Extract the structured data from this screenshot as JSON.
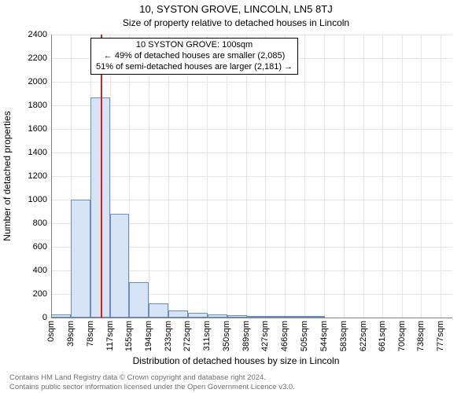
{
  "title_main": "10, SYSTON GROVE, LINCOLN, LN5 8TJ",
  "title_sub": "Size of property relative to detached houses in Lincoln",
  "ylabel": "Number of detached properties",
  "xlabel": "Distribution of detached houses by size in Lincoln",
  "chart": {
    "type": "histogram",
    "plot_bg": "#ffffff",
    "grid_color": "#e5e5e5",
    "axis_color": "#808080",
    "bar_fill": "#d6e4f5",
    "bar_border": "#6a8fbf",
    "marker_color": "#d62020",
    "xlim_min": 0,
    "xlim_max": 800,
    "ylim_min": 0,
    "ylim_max": 2400,
    "ytick_step": 200,
    "bin_width": 39,
    "xtick_unit": "sqm",
    "xticks": [
      0,
      39,
      78,
      117,
      155,
      194,
      233,
      272,
      311,
      350,
      389,
      427,
      466,
      505,
      544,
      583,
      622,
      661,
      700,
      738,
      777
    ],
    "bars": [
      {
        "x": 0,
        "count": 30
      },
      {
        "x": 39,
        "count": 1000
      },
      {
        "x": 78,
        "count": 1870
      },
      {
        "x": 117,
        "count": 880
      },
      {
        "x": 156,
        "count": 300
      },
      {
        "x": 195,
        "count": 120
      },
      {
        "x": 234,
        "count": 60
      },
      {
        "x": 273,
        "count": 40
      },
      {
        "x": 312,
        "count": 30
      },
      {
        "x": 351,
        "count": 20
      },
      {
        "x": 390,
        "count": 12
      },
      {
        "x": 429,
        "count": 8
      },
      {
        "x": 468,
        "count": 6
      },
      {
        "x": 507,
        "count": 4
      },
      {
        "x": 546,
        "count": 3
      },
      {
        "x": 585,
        "count": 2
      },
      {
        "x": 624,
        "count": 2
      },
      {
        "x": 663,
        "count": 1
      },
      {
        "x": 702,
        "count": 1
      },
      {
        "x": 741,
        "count": 1
      }
    ],
    "marker_x": 100
  },
  "annotation": {
    "lines": [
      "10 SYSTON GROVE: 100sqm",
      "← 49% of detached houses are smaller (2,085)",
      "51% of semi-detached houses are larger (2,181) →"
    ],
    "border_color": "#000000",
    "bg": "#ffffff",
    "fontsize": 11
  },
  "footer": {
    "line1": "Contains HM Land Registry data © Crown copyright and database right 2024.",
    "line2": "Contains public sector information licensed under the Open Government Licence v3.0.",
    "color": "#707070"
  }
}
